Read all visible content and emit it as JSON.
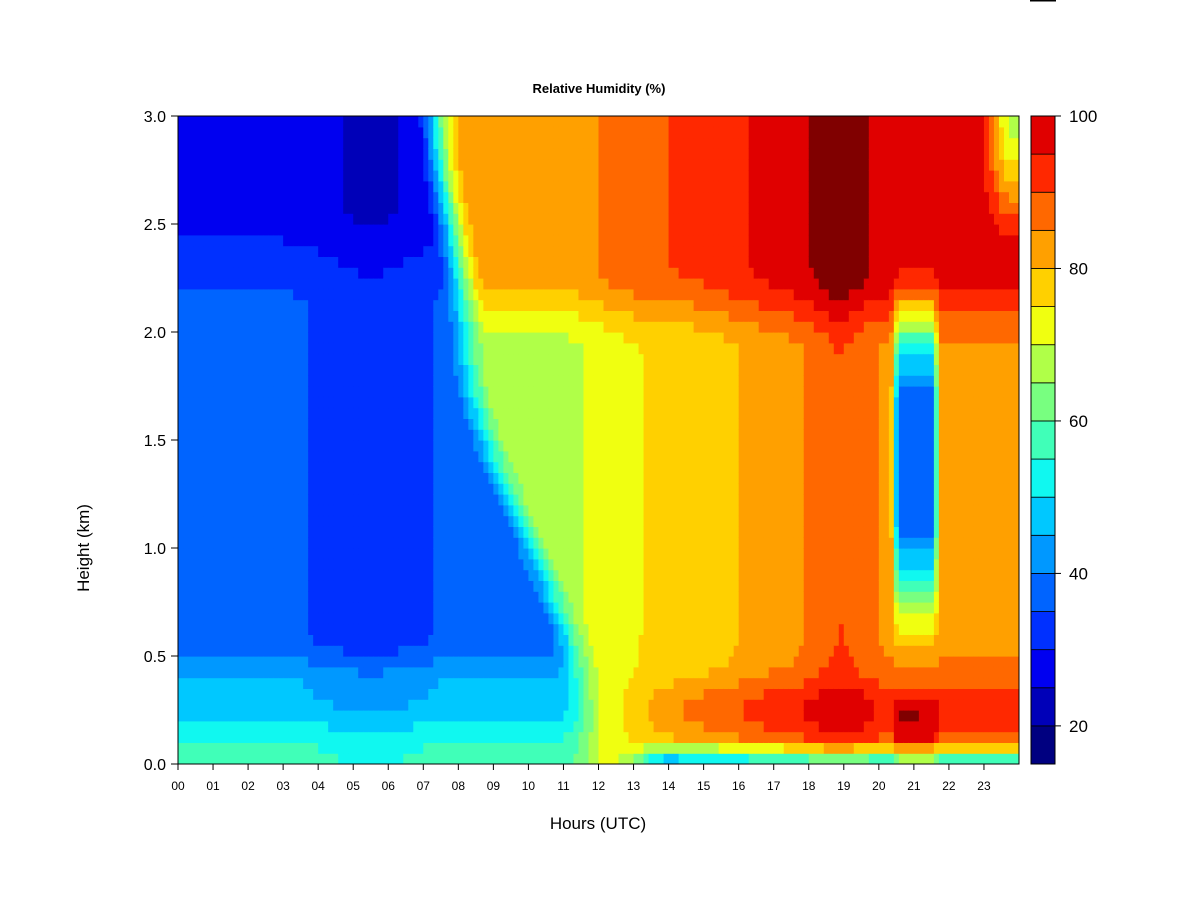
{
  "chart_data": {
    "type": "heatmap",
    "title": "Relative Humidity (%)",
    "xlabel": "Hours (UTC)",
    "ylabel": "Height (km)",
    "x_range": [
      0,
      24
    ],
    "y_range": [
      0,
      3.0
    ],
    "x_ticks": [
      "00",
      "01",
      "02",
      "03",
      "04",
      "05",
      "06",
      "07",
      "08",
      "09",
      "10",
      "11",
      "12",
      "13",
      "14",
      "15",
      "16",
      "17",
      "18",
      "19",
      "20",
      "21",
      "22",
      "23"
    ],
    "y_ticks": [
      "0.0",
      "0.5",
      "1.0",
      "1.5",
      "2.0",
      "2.5",
      "3.0"
    ],
    "colorbar": {
      "range": [
        15,
        100
      ],
      "labels": [
        "20",
        "40",
        "60",
        "80",
        "100"
      ],
      "label_values": [
        20,
        40,
        60,
        80,
        100
      ],
      "levels": [
        15,
        20,
        25,
        30,
        35,
        40,
        45,
        50,
        55,
        60,
        65,
        70,
        75,
        80,
        85,
        90,
        95,
        100
      ],
      "colors": [
        "#000080",
        "#0000b8",
        "#0000f0",
        "#0030ff",
        "#0064ff",
        "#0098ff",
        "#00c8ff",
        "#10f8f0",
        "#40ffb8",
        "#78ff80",
        "#b0ff48",
        "#f0ff10",
        "#ffd000",
        "#ffa000",
        "#ff6800",
        "#ff2800",
        "#e00000",
        "#800000"
      ]
    },
    "legend": "colorbar-right",
    "grid": false
  }
}
